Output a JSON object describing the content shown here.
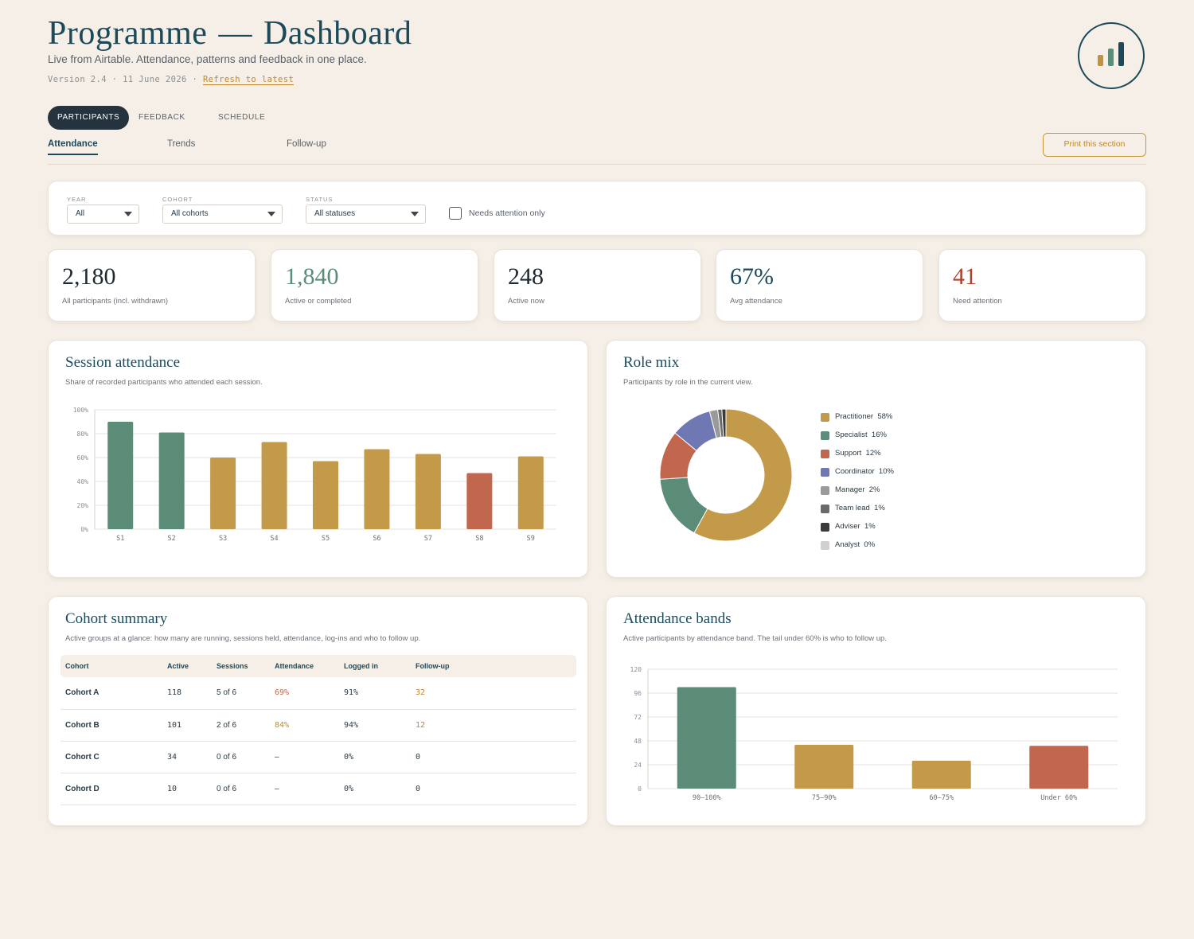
{
  "header": {
    "title_left": "Programme",
    "title_dash": "—",
    "title_right": "Dashboard",
    "subtitle": "Live from Airtable. Attendance, patterns and feedback in one place.",
    "version": "Version 2.4 · 11 June 2026 ·",
    "refresh_label": "Refresh to latest"
  },
  "logo": {
    "icon": "bar-chart-logo-icon",
    "colors": [
      "#c0923f",
      "#5b8c78",
      "#1d4a5a"
    ]
  },
  "tabs": {
    "main": [
      "PARTICIPANTS",
      "FEEDBACK",
      "SCHEDULE"
    ],
    "sub": [
      "Attendance",
      "Trends",
      "Follow-up"
    ],
    "print_label": "Print this section"
  },
  "filters": {
    "year": {
      "label": "YEAR",
      "value": "All"
    },
    "cohort": {
      "label": "COHORT",
      "value": "All cohorts"
    },
    "status": {
      "label": "STATUS",
      "value": "All statuses"
    },
    "attention_label": "Needs attention only"
  },
  "stats": [
    {
      "value": "2,180",
      "label": "All participants (incl. withdrawn)",
      "color": "#1f2a30"
    },
    {
      "value": "1,840",
      "label": "Active or completed",
      "color": "#5b8c78"
    },
    {
      "value": "248",
      "label": "Active now",
      "color": "#1f2a30"
    },
    {
      "value": "67%",
      "label": "Avg attendance",
      "color": "#1d4a5a"
    },
    {
      "value": "41",
      "label": "Need attention",
      "color": "#a8432f"
    }
  ],
  "session_panel": {
    "title": "Session attendance",
    "subtitle": "Share of recorded participants who attended each session."
  },
  "role_panel": {
    "title": "Role mix",
    "subtitle": "Participants by role in the current view."
  },
  "cohort_panel": {
    "title": "Cohort summary",
    "subtitle": "Active groups at a glance: how many are running, sessions held, attendance, log-ins and who to follow up.",
    "columns": [
      "Cohort",
      "Active",
      "Sessions",
      "Attendance",
      "Logged in",
      "Follow-up"
    ],
    "rows": [
      [
        "Cohort A",
        "118",
        "5 of 6",
        "69%",
        "91%",
        "32"
      ],
      [
        "Cohort B",
        "101",
        "2 of 6",
        "84%",
        "94%",
        "12"
      ],
      [
        "Cohort C",
        "34",
        "0 of 6",
        "–",
        "0%",
        "0"
      ],
      [
        "Cohort D",
        "10",
        "0 of 6",
        "–",
        "0%",
        "0"
      ]
    ]
  },
  "bands_panel": {
    "title": "Attendance bands",
    "subtitle": "Active participants by attendance band. The tail under 60% is who to follow up."
  },
  "chart_data": [
    {
      "type": "bar",
      "categories": [
        "S1",
        "S2",
        "S3",
        "S4",
        "S5",
        "S6",
        "S7",
        "S8",
        "S9"
      ],
      "values": [
        90,
        81,
        60,
        73,
        57,
        67,
        63,
        47,
        61
      ],
      "colors": [
        "#5b8c78",
        "#5b8c78",
        "#c39a4a",
        "#c39a4a",
        "#c39a4a",
        "#c39a4a",
        "#c39a4a",
        "#c0674d",
        "#c39a4a"
      ],
      "ylim": [
        0,
        100
      ],
      "yticks": [
        "0%",
        "20%",
        "40%",
        "60%",
        "80%",
        "100%"
      ],
      "grid": true
    },
    {
      "type": "pie",
      "labels": [
        "Practitioner",
        "Specialist",
        "Support",
        "Coordinator",
        "Manager",
        "Team lead",
        "Adviser",
        "Analyst"
      ],
      "values": [
        58,
        16,
        12,
        10,
        2,
        1,
        1,
        0
      ],
      "value_labels": [
        "58%",
        "16%",
        "12%",
        "10%",
        "2%",
        "1%",
        "1%",
        "0%"
      ],
      "colors": [
        "#c39a4a",
        "#5b8c78",
        "#c0674d",
        "#7078b4",
        "#9a9a9a",
        "#6a6a6a",
        "#3a3a3a",
        "#d0d0d0"
      ],
      "legend": "right"
    },
    {
      "type": "bar",
      "categories": [
        "90–100%",
        "75–90%",
        "60–75%",
        "Under 60%"
      ],
      "values": [
        102,
        44,
        28,
        43
      ],
      "colors": [
        "#5b8c78",
        "#c39a4a",
        "#c39a4a",
        "#c0674d"
      ],
      "ylim": [
        0,
        120
      ],
      "yticks": [
        "0",
        "24",
        "48",
        "72",
        "96",
        "120"
      ],
      "grid": true
    }
  ]
}
